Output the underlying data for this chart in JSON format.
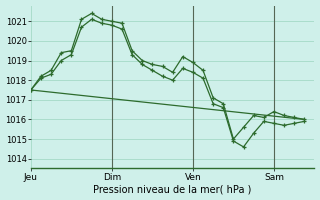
{
  "background_color": "#cff0ea",
  "grid_color": "#aaddcc",
  "line_color": "#2d6b2d",
  "title": "Pression niveau de la mer( hPa )",
  "ylim": [
    1013.5,
    1021.8
  ],
  "yticks": [
    1014,
    1015,
    1016,
    1017,
    1018,
    1019,
    1020,
    1021
  ],
  "day_labels": [
    "Jeu",
    "Dim",
    "Ven",
    "Sam"
  ],
  "day_positions": [
    0,
    48,
    96,
    144
  ],
  "xlim": [
    0,
    168
  ],
  "series1_x": [
    0,
    6,
    12,
    18,
    24,
    30,
    36,
    42,
    48,
    54,
    60,
    66,
    72,
    78,
    84,
    90,
    96,
    102,
    108,
    114,
    120,
    126,
    132,
    138,
    144,
    150,
    156,
    162
  ],
  "series1_y": [
    1017.5,
    1018.2,
    1018.5,
    1019.4,
    1019.5,
    1021.1,
    1021.4,
    1021.1,
    1021.0,
    1020.9,
    1019.5,
    1019.0,
    1018.8,
    1018.7,
    1018.4,
    1019.2,
    1018.9,
    1018.5,
    1017.1,
    1016.8,
    1015.0,
    1015.6,
    1016.2,
    1016.1,
    1016.4,
    1016.2,
    1016.1,
    1016.0
  ],
  "series2_x": [
    0,
    6,
    12,
    18,
    24,
    30,
    36,
    42,
    48,
    54,
    60,
    66,
    72,
    78,
    84,
    90,
    96,
    102,
    108,
    114,
    120,
    126,
    132,
    138,
    144,
    150,
    156,
    162
  ],
  "series2_y": [
    1017.5,
    1018.1,
    1018.3,
    1019.0,
    1019.3,
    1020.7,
    1021.1,
    1020.9,
    1020.8,
    1020.6,
    1019.3,
    1018.8,
    1018.5,
    1018.2,
    1018.0,
    1018.6,
    1018.4,
    1018.1,
    1016.8,
    1016.6,
    1014.9,
    1014.6,
    1015.3,
    1015.9,
    1015.8,
    1015.7,
    1015.8,
    1015.9
  ],
  "series3_x": [
    0,
    162
  ],
  "series3_y": [
    1017.5,
    1016.0
  ],
  "vline_color": "#556655",
  "vline_positions": [
    48,
    96,
    144
  ]
}
